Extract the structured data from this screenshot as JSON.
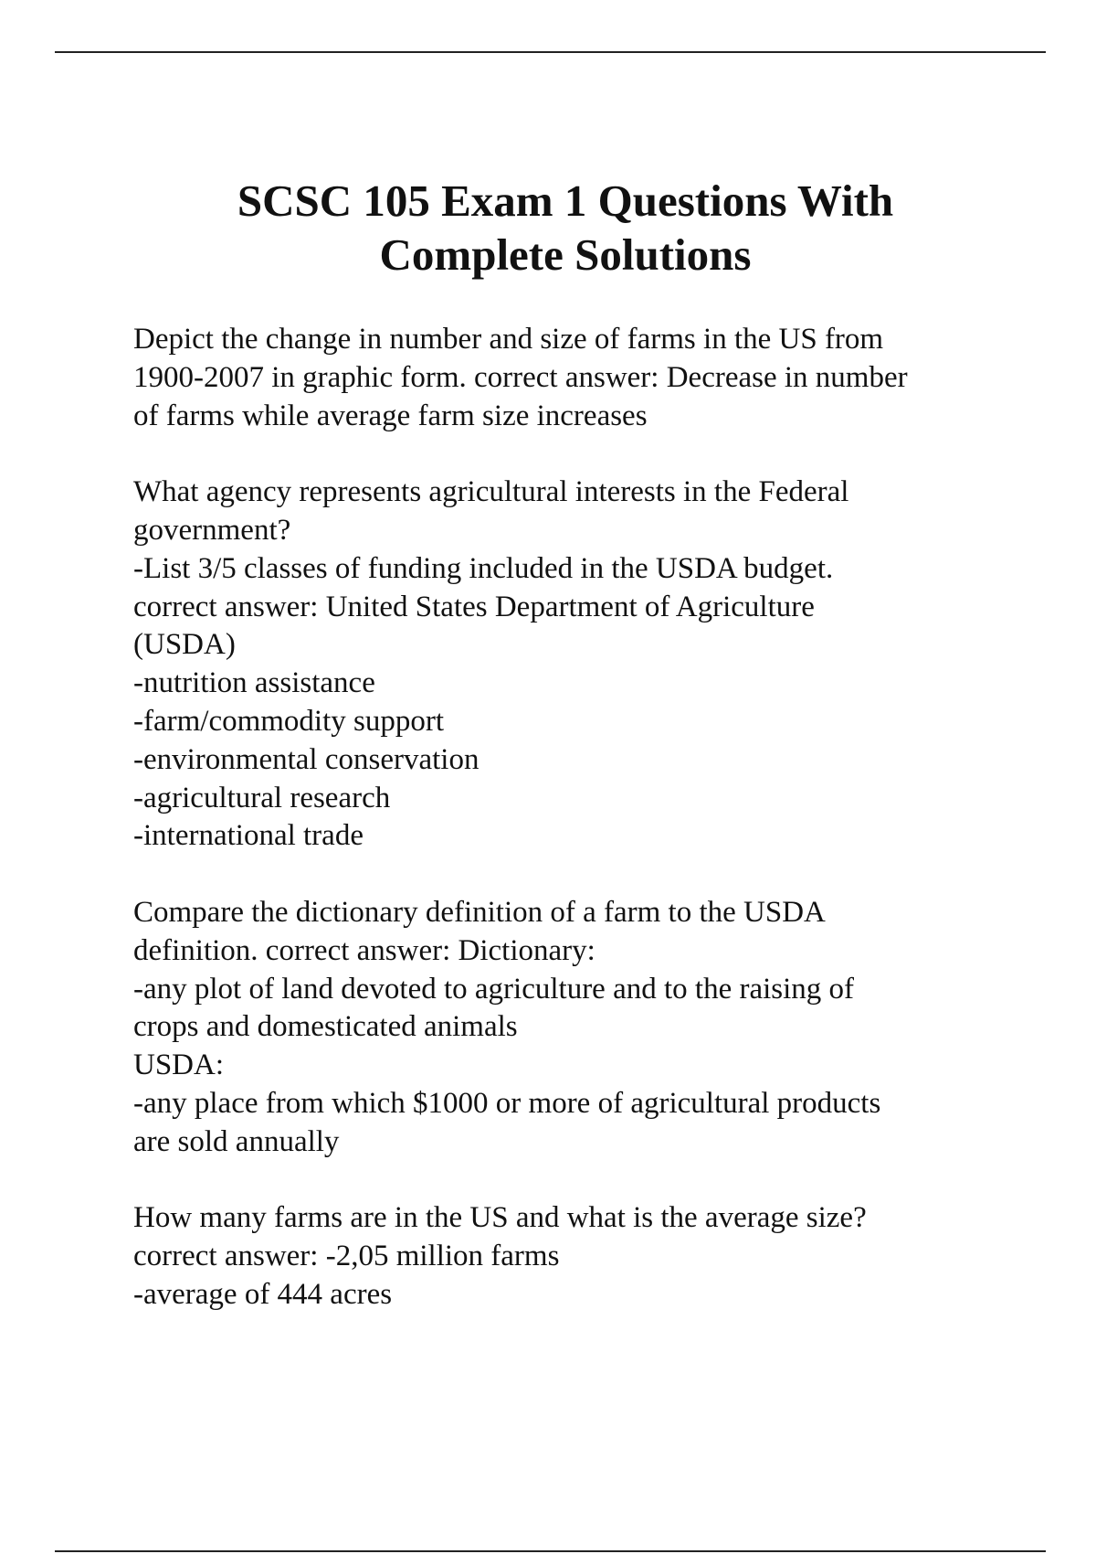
{
  "document": {
    "title_lines": [
      "SCSC 105 Exam 1 Questions With",
      "Complete Solutions"
    ],
    "paragraphs": [
      {
        "lines": [
          "Depict the change in number and size of farms in the US from",
          "1900-2007 in graphic form. correct answer:  Decrease in number",
          "of farms while average farm size increases"
        ]
      },
      {
        "lines": [
          "What agency represents agricultural interests in the Federal",
          "government?",
          "-List 3/5 classes of funding included in the USDA budget.",
          "correct answer:  United States Department of Agriculture",
          "(USDA)",
          "-nutrition assistance",
          "-farm/commodity support",
          "-environmental conservation",
          "-agricultural research",
          "-international trade"
        ]
      },
      {
        "lines": [
          "Compare the dictionary definition of a farm to the USDA",
          "definition. correct answer:  Dictionary:",
          "-any plot of land devoted to agriculture and to the raising of",
          "crops and domesticated animals",
          "USDA:",
          "-any place from which $1000 or more of agricultural products",
          "are sold annually"
        ]
      },
      {
        "lines": [
          "How many farms are in the US and what is the average size?",
          "correct answer:  -2,05 million farms",
          "-average of 444 acres"
        ]
      }
    ]
  }
}
